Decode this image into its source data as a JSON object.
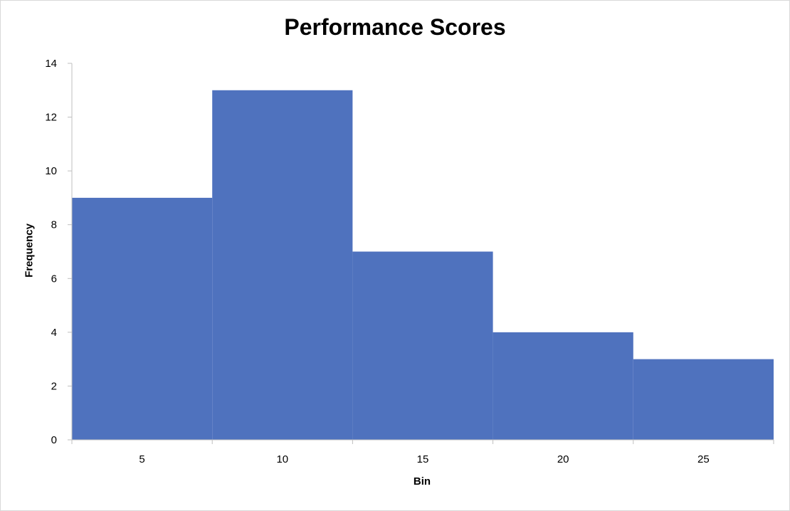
{
  "chart_data": {
    "type": "bar",
    "title": "Performance Scores",
    "xlabel": "Bin",
    "ylabel": "Frequency",
    "categories": [
      "5",
      "10",
      "15",
      "20",
      "25"
    ],
    "values": [
      9,
      13,
      7,
      4,
      3
    ],
    "ylim": [
      0,
      14
    ],
    "yticks": [
      0,
      2,
      4,
      6,
      8,
      10,
      12,
      14
    ],
    "grid": false,
    "legend": "none",
    "bar_color": "#4f72be",
    "axis_color": "#bfbfbf"
  }
}
